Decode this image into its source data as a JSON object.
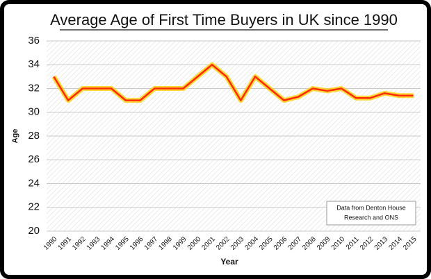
{
  "chart_data": {
    "type": "line",
    "title": "Average Age of First Time Buyers in UK since 1990",
    "x_label": "Year",
    "y_label": "Age",
    "note": [
      "Data from Denton House",
      "Research and ONS"
    ],
    "categories": [
      "1990",
      "1991",
      "1992",
      "1993",
      "1994",
      "1995",
      "1996",
      "1997",
      "1998",
      "1999",
      "2000",
      "2001",
      "2002",
      "2003",
      "2004",
      "2005",
      "2006",
      "2007",
      "2008",
      "2009",
      "2010",
      "2011",
      "2012",
      "2013",
      "2014",
      "2015"
    ],
    "values": [
      33,
      31,
      32,
      32,
      32,
      31,
      31,
      32,
      32,
      32,
      33,
      34,
      33,
      31,
      33,
      32,
      31,
      31.3,
      32,
      31.8,
      32,
      31.2,
      31.2,
      31.6,
      31.4,
      31.4
    ],
    "color": "#ff2a00",
    "ylim": [
      20,
      36
    ],
    "yticks": [
      20,
      22,
      24,
      26,
      28,
      30,
      32,
      34,
      36
    ],
    "grid": true
  }
}
